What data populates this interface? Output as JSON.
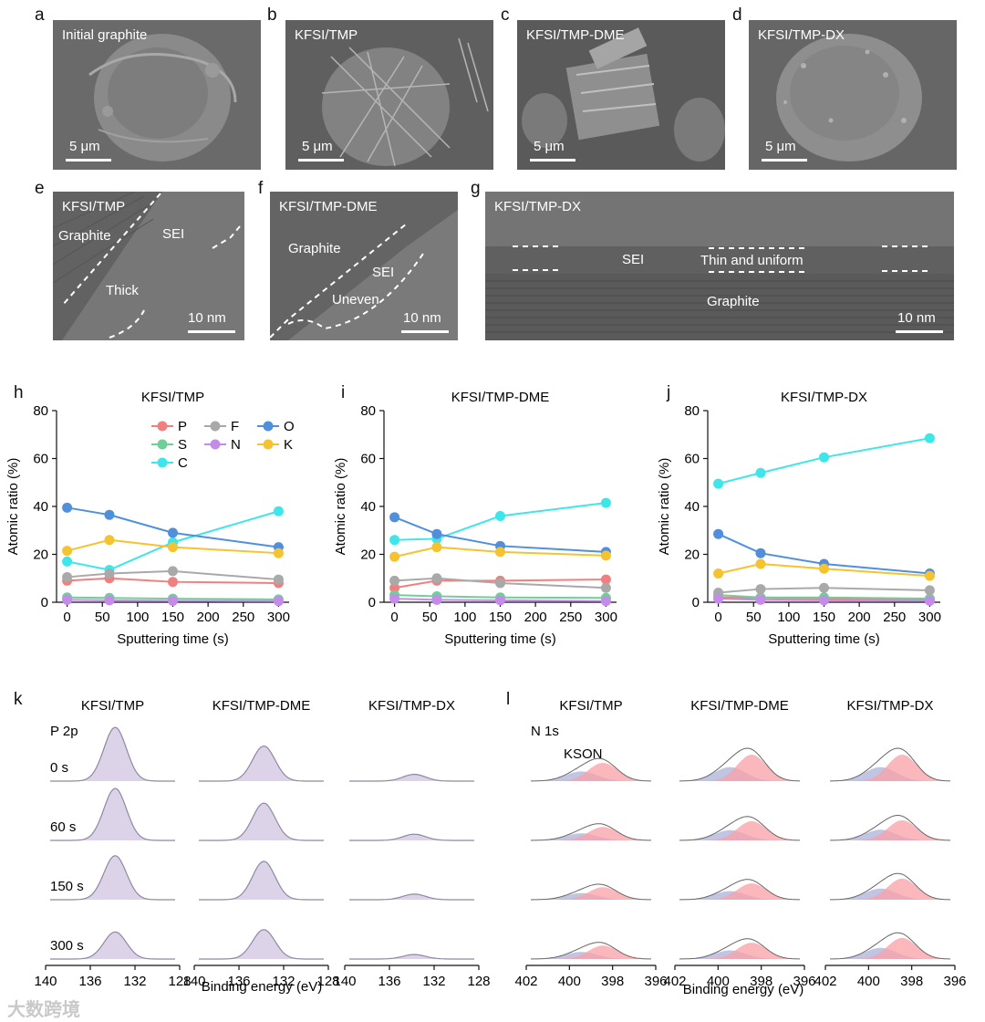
{
  "panels": {
    "a": {
      "label": "a",
      "title": "Initial graphite",
      "scale": "5 μm"
    },
    "b": {
      "label": "b",
      "title": "KFSI/TMP",
      "scale": "5 μm"
    },
    "c": {
      "label": "c",
      "title": "KFSI/TMP-DME",
      "scale": "5 μm"
    },
    "d": {
      "label": "d",
      "title": "KFSI/TMP-DX",
      "scale": "5 μm"
    },
    "e": {
      "label": "e",
      "title": "KFSI/TMP",
      "scale": "10 nm",
      "graphite": "Graphite",
      "sei": "SEI",
      "note": "Thick"
    },
    "f": {
      "label": "f",
      "title": "KFSI/TMP-DME",
      "scale": "10 nm",
      "graphite": "Graphite",
      "sei": "SEI",
      "note": "Uneven"
    },
    "g": {
      "label": "g",
      "title": "KFSI/TMP-DX",
      "scale": "10 nm",
      "graphite": "Graphite",
      "sei": "SEI",
      "note": "Thin and uniform"
    }
  },
  "colors": {
    "P": "#f08080",
    "S": "#6fcf97",
    "C": "#3ee6ea",
    "F": "#a9a9a9",
    "N": "#c58be8",
    "O": "#4f8fdc",
    "K": "#f5c230"
  },
  "chart_data": [
    {
      "type": "line",
      "label": "h",
      "title": "KFSI/TMP",
      "xlabel": "Sputtering time (s)",
      "ylabel": "Atomic ratio (%)",
      "x": [
        0,
        60,
        150,
        300
      ],
      "xlim": [
        -15,
        315
      ],
      "ylim": [
        0,
        80
      ],
      "xticks": [
        "0",
        "50",
        "100",
        "150",
        "200",
        "250",
        "300"
      ],
      "yticks": [
        "0",
        "20",
        "40",
        "60",
        "80"
      ],
      "legend": [
        "P",
        "F",
        "O",
        "S",
        "N",
        "K",
        "C"
      ],
      "series": [
        {
          "name": "P",
          "values": [
            9,
            10,
            8.5,
            8
          ]
        },
        {
          "name": "S",
          "values": [
            2,
            1.8,
            1.5,
            1.2
          ]
        },
        {
          "name": "C",
          "values": [
            17,
            13.5,
            25,
            38
          ]
        },
        {
          "name": "F",
          "values": [
            10.5,
            12,
            13,
            9.5
          ]
        },
        {
          "name": "N",
          "values": [
            1,
            0.8,
            0.6,
            0.5
          ]
        },
        {
          "name": "O",
          "values": [
            39.5,
            36.5,
            29,
            23
          ]
        },
        {
          "name": "K",
          "values": [
            21.5,
            26,
            23,
            20.5
          ]
        }
      ]
    },
    {
      "type": "line",
      "label": "i",
      "title": "KFSI/TMP-DME",
      "xlabel": "Sputtering time (s)",
      "ylabel": "Atomic ratio (%)",
      "x": [
        0,
        60,
        150,
        300
      ],
      "xlim": [
        -15,
        315
      ],
      "ylim": [
        0,
        80
      ],
      "xticks": [
        "0",
        "50",
        "100",
        "150",
        "200",
        "250",
        "300"
      ],
      "yticks": [
        "0",
        "20",
        "40",
        "60",
        "80"
      ],
      "series": [
        {
          "name": "P",
          "values": [
            6,
            9,
            9,
            9.5
          ]
        },
        {
          "name": "S",
          "values": [
            3,
            2.5,
            2,
            1.8
          ]
        },
        {
          "name": "C",
          "values": [
            26,
            26.5,
            36,
            41.5
          ]
        },
        {
          "name": "F",
          "values": [
            9,
            10,
            8,
            6
          ]
        },
        {
          "name": "N",
          "values": [
            1.5,
            1,
            0.8,
            0.5
          ]
        },
        {
          "name": "O",
          "values": [
            35.5,
            28.5,
            23.5,
            21
          ]
        },
        {
          "name": "K",
          "values": [
            19,
            23,
            21,
            19.5
          ]
        }
      ]
    },
    {
      "type": "line",
      "label": "j",
      "title": "KFSI/TMP-DX",
      "xlabel": "Sputtering time (s)",
      "ylabel": "Atomic ratio (%)",
      "x": [
        0,
        60,
        150,
        300
      ],
      "xlim": [
        -15,
        315
      ],
      "ylim": [
        0,
        80
      ],
      "xticks": [
        "0",
        "50",
        "100",
        "150",
        "200",
        "250",
        "300"
      ],
      "yticks": [
        "0",
        "20",
        "40",
        "60",
        "80"
      ],
      "series": [
        {
          "name": "P",
          "values": [
            2,
            1.8,
            1.5,
            1.2
          ]
        },
        {
          "name": "S",
          "values": [
            3,
            2,
            2,
            1.5
          ]
        },
        {
          "name": "C",
          "values": [
            49.5,
            54,
            60.5,
            68.5
          ]
        },
        {
          "name": "F",
          "values": [
            4,
            5.5,
            6,
            5
          ]
        },
        {
          "name": "N",
          "values": [
            1.5,
            1,
            0.8,
            0.6
          ]
        },
        {
          "name": "O",
          "values": [
            28.5,
            20.5,
            16,
            12
          ]
        },
        {
          "name": "K",
          "values": [
            12,
            16,
            14,
            11
          ]
        }
      ]
    }
  ],
  "spectra": {
    "k": {
      "label": "k",
      "region": "P 2p",
      "xlabel": "Binding energy (eV)",
      "columns": [
        "KFSI/TMP",
        "KFSI/TMP-DME",
        "KFSI/TMP-DX"
      ],
      "rows": [
        "0 s",
        "60 s",
        "150 s",
        "300 s"
      ],
      "xticks": [
        "140",
        "136",
        "132",
        "128"
      ],
      "intensity": [
        [
          0.95,
          0.62,
          0.12
        ],
        [
          0.92,
          0.66,
          0.11
        ],
        [
          0.78,
          0.68,
          0.1
        ],
        [
          0.48,
          0.52,
          0.08
        ]
      ]
    },
    "l": {
      "label": "l",
      "region": "N 1s",
      "annotation": "KSON",
      "xlabel": "Binding energy (eV)",
      "columns": [
        "KFSI/TMP",
        "KFSI/TMP-DME",
        "KFSI/TMP-DX"
      ],
      "xticks": [
        "402",
        "400",
        "398",
        "396"
      ],
      "intensity": [
        [
          0.38,
          0.55,
          0.55
        ],
        [
          0.28,
          0.4,
          0.42
        ],
        [
          0.26,
          0.34,
          0.44
        ],
        [
          0.28,
          0.34,
          0.44
        ]
      ]
    }
  },
  "watermark": "大数跨境"
}
